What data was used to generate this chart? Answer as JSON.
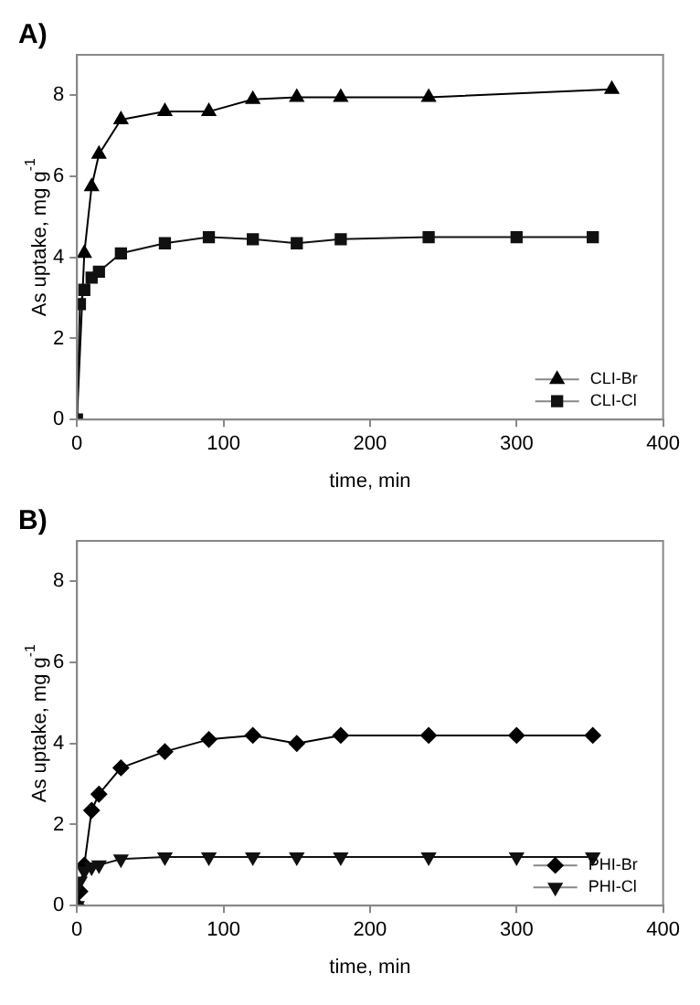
{
  "chart_data": [
    {
      "type": "line",
      "title": "A)",
      "xlabel": "time, min",
      "ylabel": "As uptake, mg g$^{-1}$",
      "xlim": [
        0,
        400
      ],
      "xticks": [
        0,
        100,
        200,
        300,
        400
      ],
      "ylim": [
        0,
        9
      ],
      "yticks": [
        0,
        2,
        4,
        6,
        8
      ],
      "grid": false,
      "legend": "bottom right",
      "series": [
        {
          "name": "CLI-Br",
          "color": "#000000",
          "marker": "triangle",
          "x": [
            0,
            5,
            10,
            15,
            30,
            60,
            90,
            120,
            150,
            180,
            240,
            365
          ],
          "values": [
            0,
            4.1,
            5.75,
            6.55,
            7.4,
            7.6,
            7.6,
            7.9,
            7.95,
            7.95,
            7.95,
            8.15
          ]
        },
        {
          "name": "CLI-Cl",
          "color": "#111111",
          "marker": "square",
          "x": [
            0,
            2,
            5,
            10,
            15,
            30,
            60,
            90,
            120,
            150,
            180,
            240,
            300,
            352
          ],
          "values": [
            0,
            2.85,
            3.2,
            3.5,
            3.65,
            4.1,
            4.35,
            4.5,
            4.45,
            4.35,
            4.45,
            4.5,
            4.5,
            4.5
          ]
        }
      ]
    },
    {
      "type": "line",
      "title": "B)",
      "xlabel": "time, min",
      "ylabel": "As uptake, mg g$^{-1}$",
      "xlim": [
        0,
        400
      ],
      "xticks": [
        0,
        100,
        200,
        300,
        400
      ],
      "ylim": [
        0,
        9
      ],
      "yticks": [
        0,
        2,
        4,
        6,
        8
      ],
      "grid": false,
      "legend": "bottom right",
      "series": [
        {
          "name": "PHI-Br",
          "color": "#000000",
          "marker": "diamond",
          "x": [
            0,
            2,
            5,
            10,
            15,
            30,
            60,
            90,
            120,
            150,
            180,
            240,
            300,
            352
          ],
          "values": [
            0,
            0.35,
            1.0,
            2.35,
            2.75,
            3.4,
            3.8,
            4.1,
            4.2,
            4.0,
            4.2,
            4.2,
            4.2,
            4.2
          ]
        },
        {
          "name": "PHI-Cl",
          "color": "#111111",
          "marker": "triangle-down",
          "x": [
            0,
            2,
            5,
            10,
            15,
            30,
            60,
            90,
            120,
            150,
            180,
            240,
            300,
            352
          ],
          "values": [
            0,
            0.6,
            0.85,
            0.95,
            1.0,
            1.15,
            1.2,
            1.2,
            1.2,
            1.2,
            1.2,
            1.2,
            1.2,
            1.2
          ]
        }
      ]
    }
  ]
}
